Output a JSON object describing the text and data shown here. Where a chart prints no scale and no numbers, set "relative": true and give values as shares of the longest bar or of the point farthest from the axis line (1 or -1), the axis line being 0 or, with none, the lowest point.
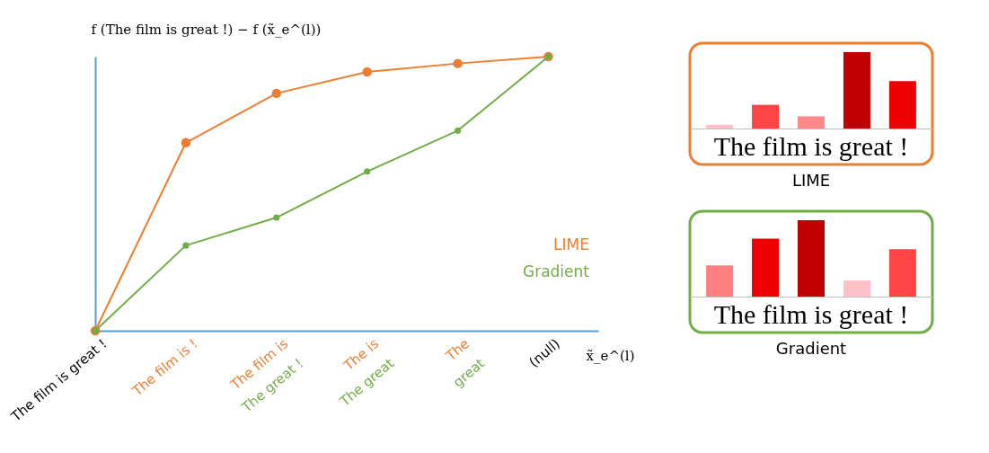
{
  "chart_data": [
    {
      "type": "line",
      "relative": true,
      "ylabel": "f (The film is great !) − f (x̃_e^(l))",
      "xlabel": "x̃_e^(l)",
      "categories": [
        "The film is great !",
        "The film is !",
        "The film is",
        "The is",
        "The",
        "(null)"
      ],
      "series": [
        {
          "name": "LIME",
          "color": "#ed7d31",
          "values": [
            0,
            0.686,
            0.866,
            0.944,
            0.975,
            1
          ]
        },
        {
          "name": "Gradient",
          "color": "#70ad47",
          "values": [
            0,
            0.311,
            0.413,
            0.581,
            0.73,
            1
          ]
        }
      ],
      "annotations": [
        "The great !",
        "The great",
        "great"
      ],
      "marker": "circle",
      "legend": "right"
    },
    {
      "type": "bar",
      "relative": true,
      "title": "LIME",
      "categories": [
        null,
        null,
        null,
        null,
        null
      ],
      "values": [
        0.051,
        0.31,
        0.16,
        1,
        0.62
      ],
      "colors": [
        "#ffc0c8",
        "#ff4444",
        "#ff8888",
        "#c00000",
        "#ee0000"
      ],
      "annotations": [
        "The film is great !"
      ]
    },
    {
      "type": "bar",
      "relative": true,
      "title": "Gradient",
      "categories": [
        null,
        null,
        null,
        null,
        null
      ],
      "values": [
        0.41,
        0.76,
        1,
        0.21,
        0.62
      ],
      "colors": [
        "#ff8080",
        "#ee0000",
        "#c00000",
        "#ffc0c8",
        "#ff4444"
      ],
      "annotations": [
        "The film is great !"
      ]
    }
  ]
}
